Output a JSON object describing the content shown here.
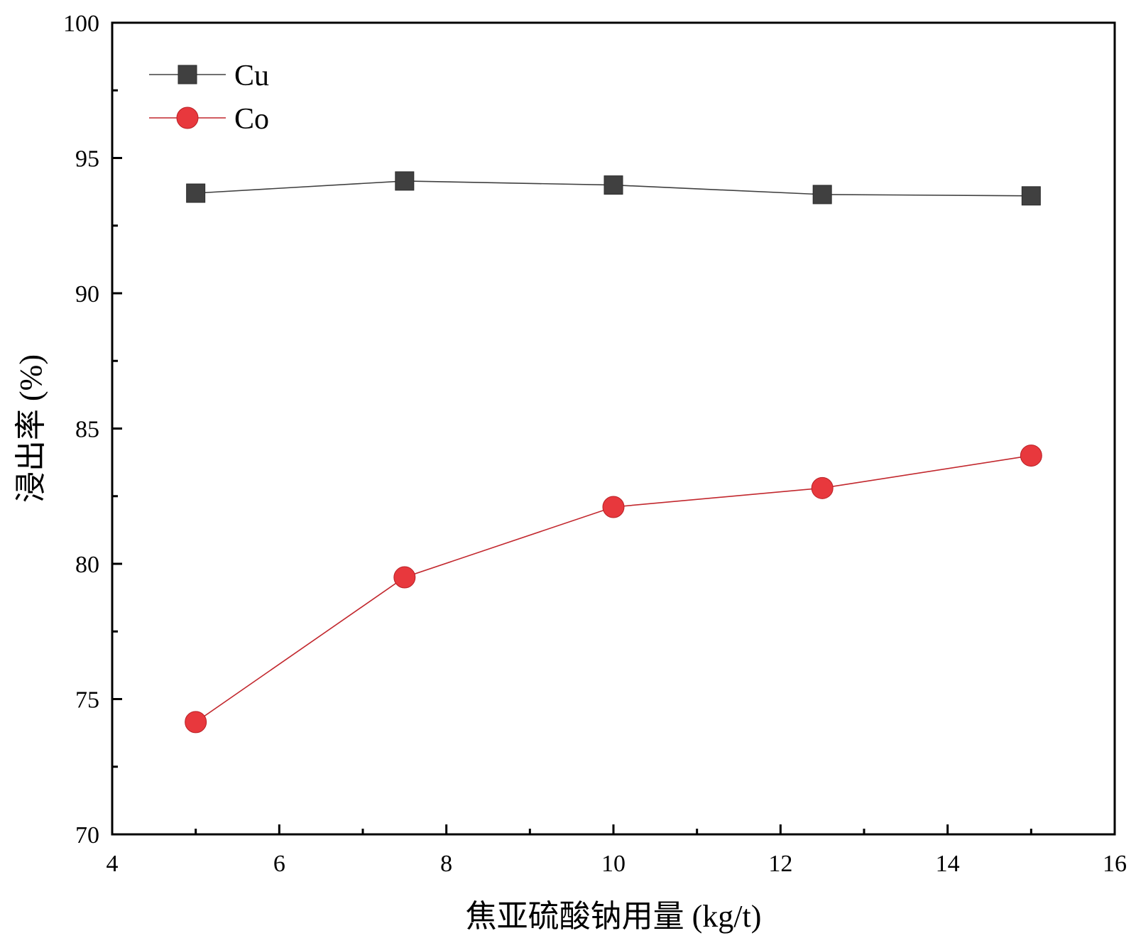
{
  "chart_data": {
    "type": "line",
    "title": "",
    "xlabel": "焦亚硫酸钠用量 (kg/t)",
    "ylabel": "浸出率 (%)",
    "xlim": [
      4,
      16
    ],
    "ylim": [
      70,
      100
    ],
    "x_ticks": [
      4,
      6,
      8,
      10,
      12,
      14,
      16
    ],
    "x_minor_ticks": [
      5,
      7,
      9,
      11,
      13,
      15
    ],
    "y_ticks": [
      70,
      75,
      80,
      85,
      90,
      95,
      100
    ],
    "y_minor_ticks": [
      72.5,
      77.5,
      82.5,
      87.5,
      92.5,
      97.5
    ],
    "grid": false,
    "legend_position": "top-left",
    "series": [
      {
        "name": "Cu",
        "marker": "square",
        "color": "#404040",
        "line_color": "#404040",
        "x": [
          5,
          7.5,
          10,
          12.5,
          15
        ],
        "y": [
          93.7,
          94.15,
          94.0,
          93.65,
          93.6
        ]
      },
      {
        "name": "Co",
        "marker": "circle",
        "color": "#e8383d",
        "line_color": "#c2272d",
        "x": [
          5,
          7.5,
          10,
          12.5,
          15
        ],
        "y": [
          74.15,
          79.5,
          82.1,
          82.8,
          84.0
        ]
      }
    ]
  }
}
